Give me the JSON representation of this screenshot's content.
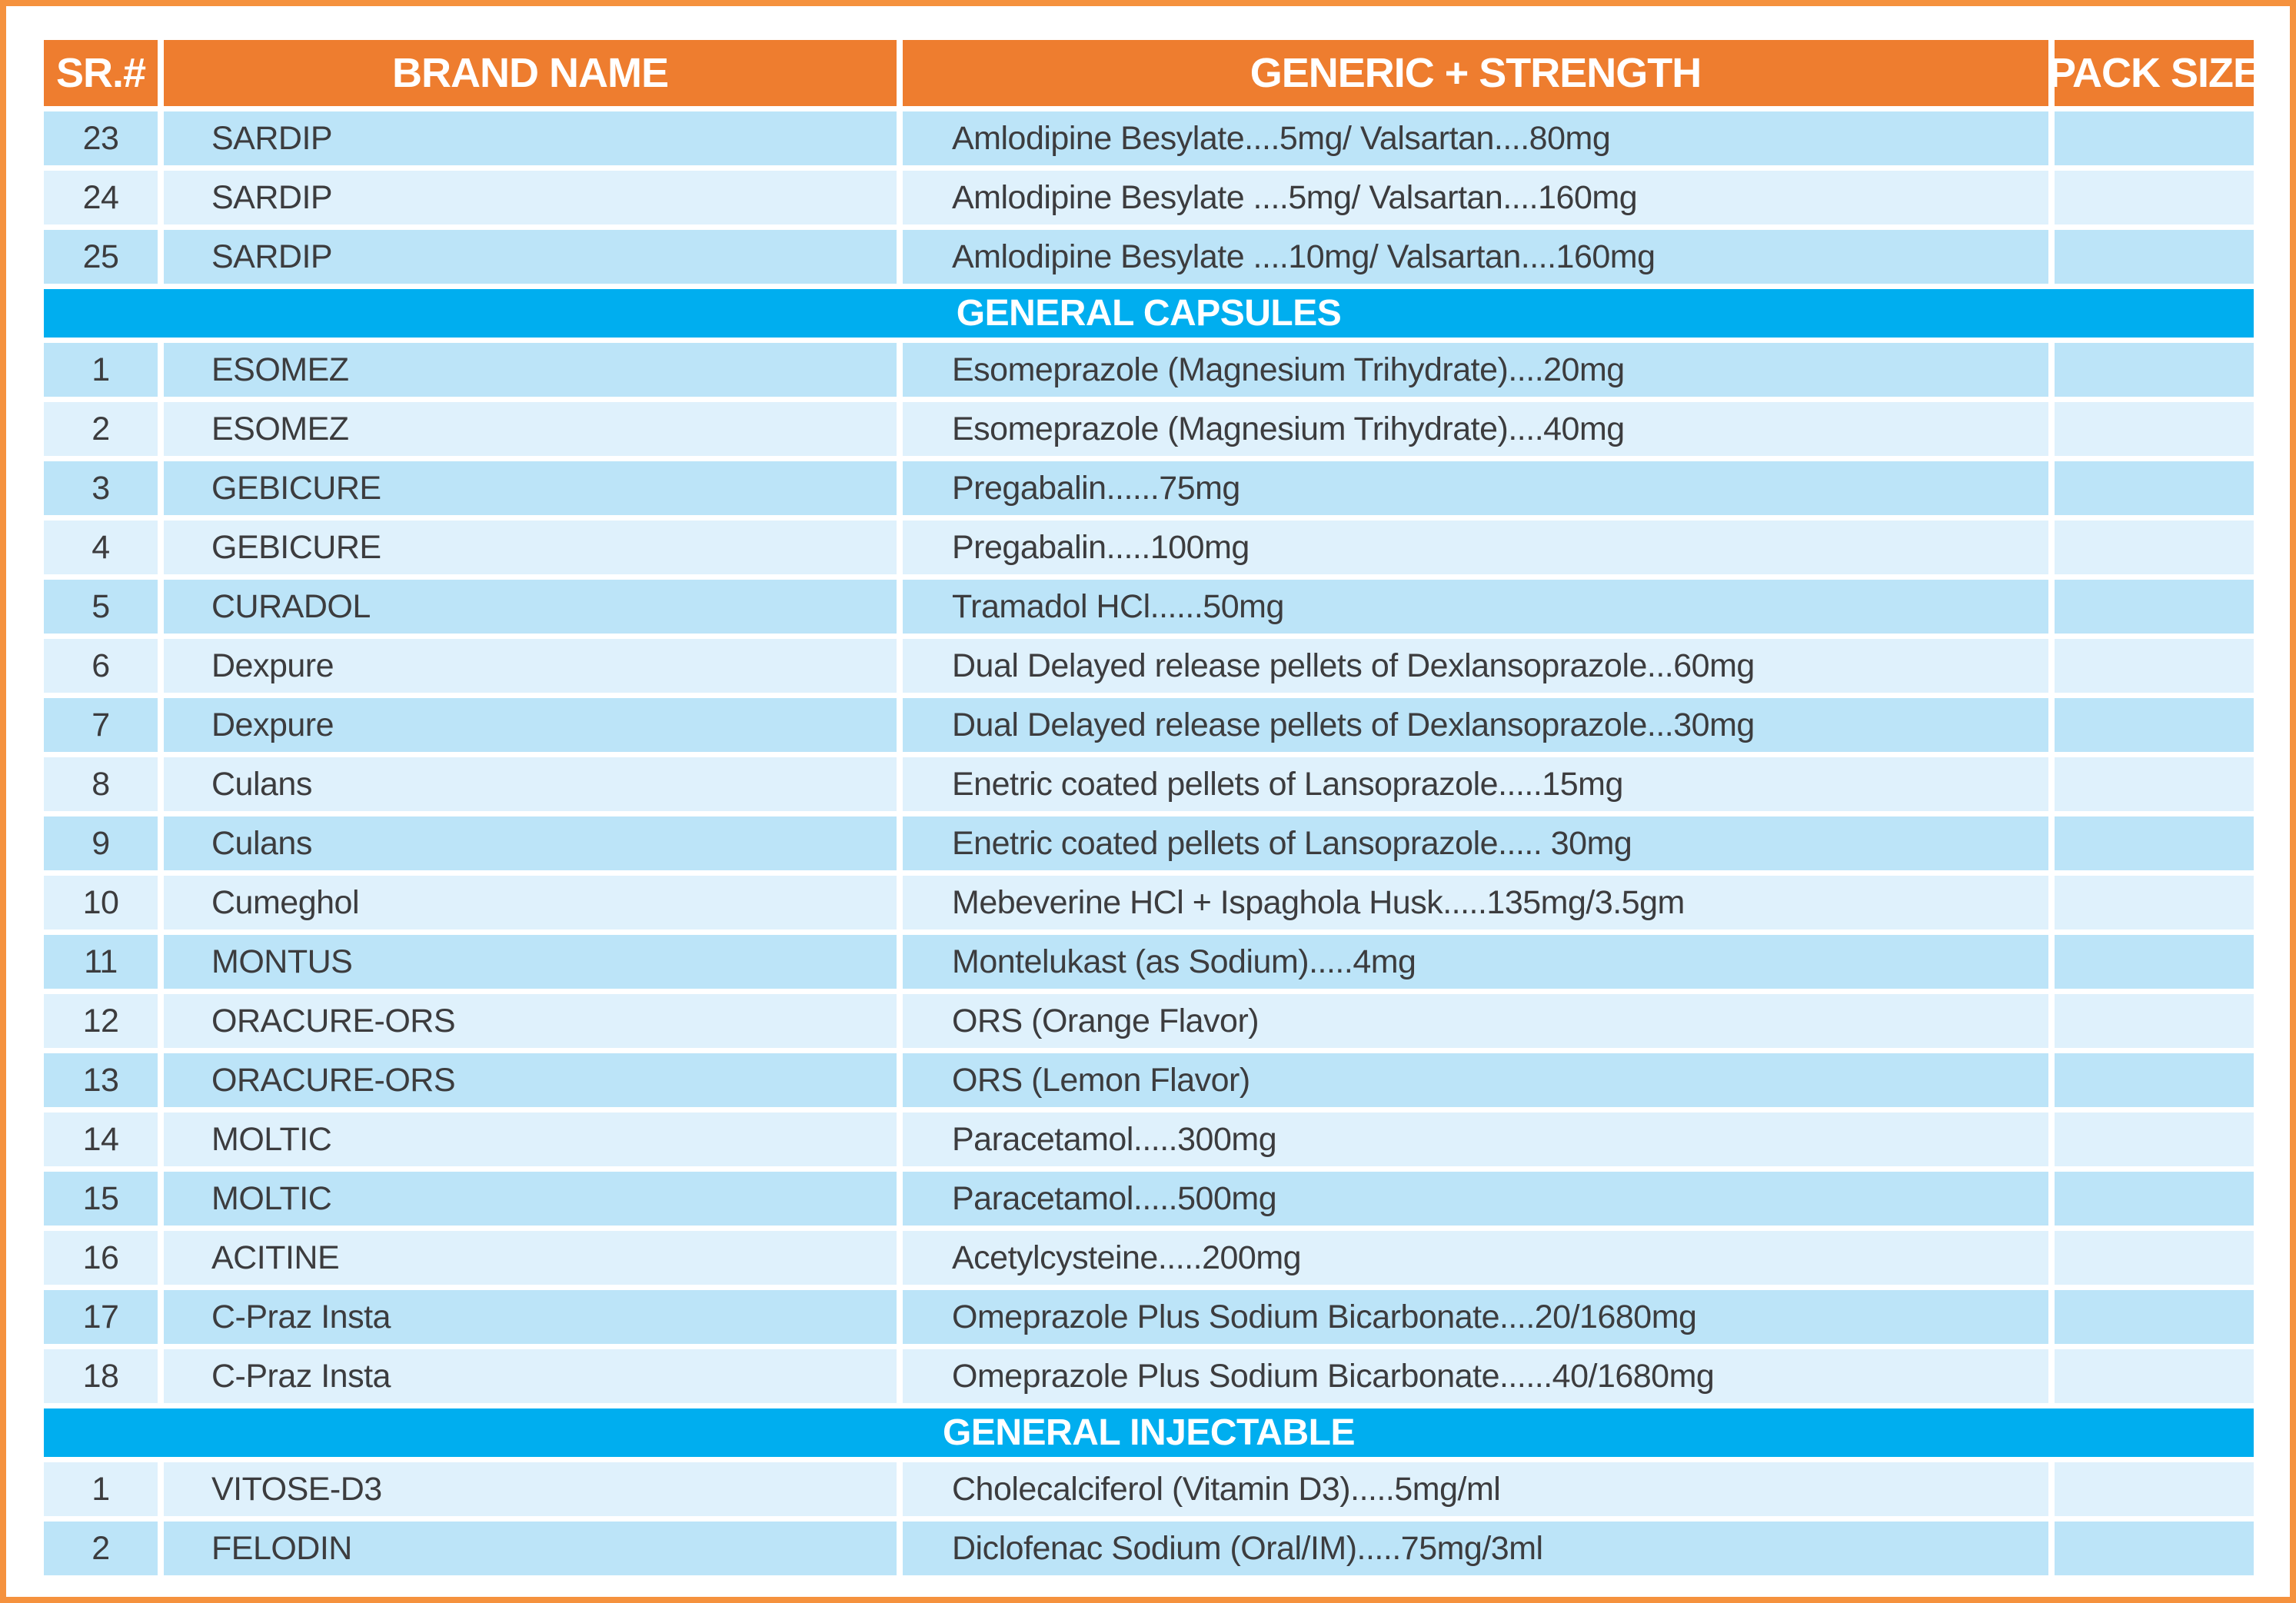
{
  "colors": {
    "frame": "#F5923E",
    "header_bg": "#EE7D2F",
    "header_text": "#FFFFFF",
    "section_bg": "#00AEEF",
    "row_dark": "#BCE4F8",
    "row_light": "#DFF1FC",
    "row_text": "#3C3C3E"
  },
  "table": {
    "columns": [
      "SR.#",
      "BRAND NAME",
      "GENERIC + STRENGTH",
      "PACK SIZE"
    ],
    "sections": [
      {
        "heading": "",
        "start_shade": "dark",
        "rows": [
          {
            "sr": "23",
            "brand": "SARDIP",
            "generic": "Amlodipine Besylate....5mg/ Valsartan....80mg",
            "pack": ""
          },
          {
            "sr": "24",
            "brand": "SARDIP",
            "generic": "Amlodipine Besylate ....5mg/ Valsartan....160mg",
            "pack": ""
          },
          {
            "sr": "25",
            "brand": "SARDIP",
            "generic": "Amlodipine Besylate ....10mg/ Valsartan....160mg",
            "pack": ""
          }
        ]
      },
      {
        "heading": "GENERAL CAPSULES",
        "start_shade": "dark",
        "rows": [
          {
            "sr": "1",
            "brand": "ESOMEZ",
            "generic": "Esomeprazole (Magnesium Trihydrate)....20mg",
            "pack": ""
          },
          {
            "sr": "2",
            "brand": "ESOMEZ",
            "generic": "Esomeprazole (Magnesium Trihydrate)....40mg",
            "pack": ""
          },
          {
            "sr": "3",
            "brand": "GEBICURE",
            "generic": "Pregabalin......75mg",
            "pack": ""
          },
          {
            "sr": "4",
            "brand": "GEBICURE",
            "generic": "Pregabalin.....100mg",
            "pack": ""
          },
          {
            "sr": "5",
            "brand": "CURADOL",
            "generic": "Tramadol HCl......50mg",
            "pack": ""
          },
          {
            "sr": "6",
            "brand": "Dexpure",
            "generic": "Dual Delayed release pellets of Dexlansoprazole...60mg",
            "pack": ""
          },
          {
            "sr": "7",
            "brand": "Dexpure",
            "generic": "Dual Delayed release pellets of Dexlansoprazole...30mg",
            "pack": ""
          },
          {
            "sr": "8",
            "brand": "Culans",
            "generic": "Enetric coated pellets of Lansoprazole.....15mg",
            "pack": ""
          },
          {
            "sr": "9",
            "brand": "Culans",
            "generic": "Enetric coated pellets of Lansoprazole..... 30mg",
            "pack": ""
          },
          {
            "sr": "10",
            "brand": "Cumeghol",
            "generic": "Mebeverine HCl + Ispaghola Husk.....135mg/3.5gm",
            "pack": ""
          },
          {
            "sr": "11",
            "brand": "MONTUS",
            "generic": "Montelukast (as Sodium).....4mg",
            "pack": ""
          },
          {
            "sr": "12",
            "brand": "ORACURE-ORS",
            "generic": "ORS  (Orange Flavor)",
            "pack": ""
          },
          {
            "sr": "13",
            "brand": "ORACURE-ORS",
            "generic": "ORS  (Lemon Flavor)",
            "pack": ""
          },
          {
            "sr": "14",
            "brand": "MOLTIC",
            "generic": "Paracetamol.....300mg",
            "pack": ""
          },
          {
            "sr": "15",
            "brand": "MOLTIC",
            "generic": "Paracetamol.....500mg",
            "pack": ""
          },
          {
            "sr": "16",
            "brand": "ACITINE",
            "generic": "Acetylcysteine.....200mg",
            "pack": ""
          },
          {
            "sr": "17",
            "brand": "C-Praz Insta",
            "generic": "Omeprazole Plus Sodium Bicarbonate....20/1680mg",
            "pack": ""
          },
          {
            "sr": "18",
            "brand": "C-Praz Insta",
            "generic": "Omeprazole Plus Sodium Bicarbonate......40/1680mg",
            "pack": ""
          }
        ]
      },
      {
        "heading": "GENERAL INJECTABLE",
        "start_shade": "light",
        "rows": [
          {
            "sr": "1",
            "brand": "VITOSE-D3",
            "generic": "Cholecalciferol (Vitamin D3).....5mg/ml",
            "pack": ""
          },
          {
            "sr": "2",
            "brand": "FELODIN",
            "generic": "Diclofenac Sodium (Oral/IM).....75mg/3ml",
            "pack": ""
          }
        ]
      }
    ]
  }
}
